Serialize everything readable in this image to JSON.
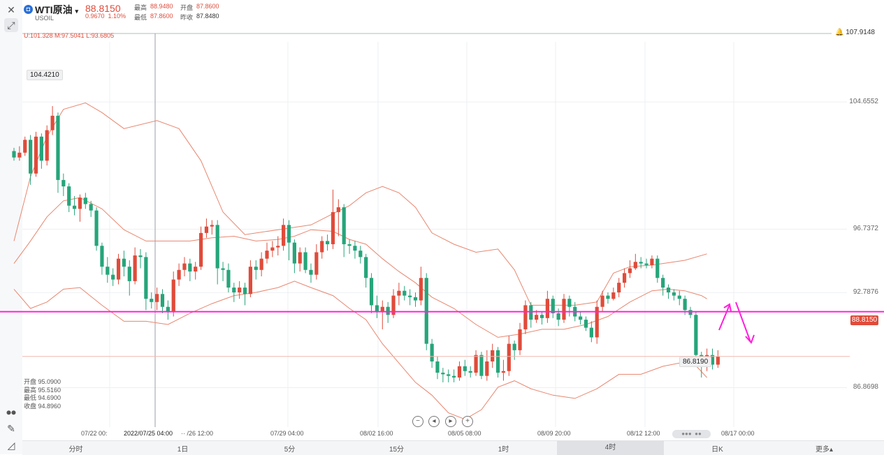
{
  "header": {
    "name": "WTI原油",
    "code": "USOIL",
    "price": "88.8150",
    "change": "0.9670",
    "change_pct": "1.10%",
    "high_label": "最高",
    "high": "88.9480",
    "open_label": "开盘",
    "open": "87.8600",
    "low_label": "最低",
    "low": "87.8600",
    "prev_label": "昨收",
    "prev": "87.8480"
  },
  "boll": "U:101.328   M:97.5041   L:93.6805",
  "alert_price": "107.9148",
  "current_price": "88.8150",
  "ohlc_box": {
    "open": "开盘 95.0900",
    "high": "最高 95.5160",
    "low": "最低 94.6900",
    "close": "收盘 94.8960"
  },
  "nav": {
    "zoom_out": "−",
    "prev": "◂",
    "next": "▸",
    "zoom_in": "+"
  },
  "timeframes": [
    "分时",
    "1日",
    "5分",
    "15分",
    "1时",
    "4时",
    "日K",
    "更多▴"
  ],
  "active_timeframe": "4时",
  "icons": {
    "close": "close-icon",
    "expand": "expand-icon",
    "bell": "bell-icon",
    "draw": "pencil-icon",
    "indicator": "indicator-icon"
  },
  "colors": {
    "up": "#e04b3a",
    "down": "#26a57a",
    "boll": "#e8866f",
    "level_line": "#ff1fdc",
    "arrow": "#ff1fdc"
  },
  "chart_data": {
    "type": "candlestick",
    "y_ticks": [
      104.6552,
      96.7372,
      92.7876,
      86.8698
    ],
    "ylim": [
      84.5,
      108.4
    ],
    "price_labels": {
      "high": "104.4210",
      "low": "86.8190"
    },
    "x_ticks": [
      "07/22 00:",
      "2022/07/25 04:00",
      "·· /26 12:00",
      "07/29 04:00",
      "08/02 16:00",
      "08/05 08:00",
      "08/09 20:00",
      "08/12 12:00",
      "08/17 00:00"
    ],
    "horizontal_level": 91.6,
    "candles": [
      [
        101.6,
        101.2,
        101.8,
        101.0
      ],
      [
        101.2,
        101.5,
        101.9,
        101.0
      ],
      [
        101.5,
        102.3,
        102.5,
        101.3
      ],
      [
        102.3,
        100.2,
        102.6,
        99.5
      ],
      [
        100.2,
        102.5,
        102.8,
        100.0
      ],
      [
        102.5,
        101.0,
        102.7,
        100.5
      ],
      [
        101.0,
        102.9,
        103.2,
        100.7
      ],
      [
        102.9,
        103.8,
        104.4,
        102.6
      ],
      [
        103.8,
        99.8,
        104.0,
        99.0
      ],
      [
        99.8,
        99.4,
        100.2,
        98.8
      ],
      [
        99.4,
        98.2,
        99.6,
        97.8
      ],
      [
        98.2,
        98.0,
        98.8,
        97.6
      ],
      [
        98.0,
        98.7,
        98.9,
        97.2
      ],
      [
        98.7,
        98.3,
        99.0,
        98.0
      ],
      [
        98.3,
        97.9,
        98.5,
        97.5
      ],
      [
        97.9,
        95.7,
        98.1,
        95.4
      ],
      [
        95.7,
        94.4,
        95.9,
        93.9
      ],
      [
        94.4,
        93.9,
        95.0,
        93.4
      ],
      [
        93.9,
        93.6,
        94.3,
        93.2
      ],
      [
        93.6,
        94.9,
        95.2,
        93.3
      ],
      [
        94.9,
        94.4,
        95.4,
        93.8
      ],
      [
        94.4,
        93.5,
        94.8,
        92.6
      ],
      [
        93.5,
        95.1,
        95.6,
        93.3
      ],
      [
        95.1,
        95.0,
        95.5,
        94.3
      ],
      [
        95.0,
        92.4,
        95.3,
        91.7
      ],
      [
        92.4,
        92.2,
        92.8,
        91.8
      ],
      [
        92.2,
        92.7,
        93.1,
        91.7
      ],
      [
        92.7,
        91.9,
        93.0,
        91.5
      ],
      [
        91.9,
        91.6,
        92.3,
        91.1
      ],
      [
        91.6,
        93.6,
        94.1,
        91.3
      ],
      [
        93.6,
        94.2,
        94.6,
        93.2
      ],
      [
        94.2,
        94.6,
        95.0,
        93.8
      ],
      [
        94.6,
        94.1,
        94.9,
        93.5
      ],
      [
        94.1,
        94.4,
        94.7,
        93.6
      ],
      [
        94.4,
        96.5,
        96.9,
        94.2
      ],
      [
        96.5,
        96.9,
        97.4,
        96.2
      ],
      [
        96.9,
        97.0,
        97.3,
        96.4
      ],
      [
        97.0,
        94.3,
        97.3,
        93.3
      ],
      [
        94.3,
        94.2,
        94.7,
        93.5
      ],
      [
        94.2,
        93.1,
        94.6,
        92.8
      ],
      [
        93.1,
        92.8,
        93.4,
        92.2
      ],
      [
        92.8,
        93.1,
        93.5,
        92.4
      ],
      [
        93.1,
        92.7,
        93.4,
        92.0
      ],
      [
        92.7,
        94.4,
        94.8,
        92.5
      ],
      [
        94.4,
        94.2,
        94.8,
        93.6
      ],
      [
        94.2,
        94.9,
        95.3,
        93.8
      ],
      [
        94.9,
        95.4,
        95.9,
        94.6
      ],
      [
        95.4,
        95.6,
        96.0,
        95.0
      ],
      [
        95.6,
        95.7,
        96.3,
        95.1
      ],
      [
        95.7,
        97.0,
        97.4,
        95.4
      ],
      [
        97.0,
        95.9,
        97.3,
        94.8
      ],
      [
        95.9,
        94.6,
        96.1,
        94.0
      ],
      [
        94.6,
        95.3,
        95.6,
        94.1
      ],
      [
        95.3,
        94.2,
        95.6,
        94.0
      ],
      [
        94.2,
        93.9,
        94.6,
        93.4
      ],
      [
        93.9,
        95.3,
        95.8,
        93.6
      ],
      [
        95.3,
        96.0,
        96.3,
        94.9
      ],
      [
        96.0,
        95.8,
        96.4,
        95.4
      ],
      [
        95.8,
        97.8,
        99.2,
        95.5
      ],
      [
        97.8,
        98.1,
        98.6,
        96.3
      ],
      [
        98.1,
        95.8,
        98.3,
        95.0
      ],
      [
        95.8,
        95.7,
        96.1,
        95.2
      ],
      [
        95.7,
        95.4,
        96.0,
        94.9
      ],
      [
        95.4,
        95.0,
        95.7,
        94.6
      ],
      [
        95.0,
        93.7,
        95.2,
        93.1
      ],
      [
        93.7,
        92.0,
        94.0,
        91.5
      ],
      [
        92.0,
        91.6,
        92.6,
        91.2
      ],
      [
        91.6,
        91.9,
        92.3,
        90.5
      ],
      [
        91.9,
        91.4,
        92.2,
        90.9
      ],
      [
        91.4,
        92.6,
        93.0,
        91.2
      ],
      [
        92.6,
        92.9,
        93.4,
        92.0
      ],
      [
        92.9,
        92.6,
        93.2,
        92.3
      ],
      [
        92.6,
        92.5,
        93.0,
        92.0
      ],
      [
        92.5,
        92.3,
        92.8,
        91.9
      ],
      [
        92.3,
        93.7,
        94.4,
        92.0
      ],
      [
        93.7,
        89.6,
        94.0,
        89.2
      ],
      [
        89.6,
        88.5,
        89.9,
        88.1
      ],
      [
        88.5,
        87.8,
        88.8,
        87.4
      ],
      [
        87.8,
        87.7,
        88.1,
        87.2
      ],
      [
        87.7,
        87.6,
        88.0,
        87.2
      ],
      [
        87.6,
        87.5,
        88.0,
        87.2
      ],
      [
        87.5,
        88.2,
        88.5,
        87.3
      ],
      [
        88.2,
        87.9,
        88.6,
        87.6
      ],
      [
        87.9,
        87.8,
        88.2,
        87.5
      ],
      [
        87.8,
        88.9,
        89.2,
        87.6
      ],
      [
        88.9,
        87.6,
        89.1,
        87.4
      ],
      [
        87.6,
        88.5,
        89.2,
        87.3
      ],
      [
        88.5,
        89.2,
        89.6,
        88.1
      ],
      [
        89.2,
        87.8,
        89.4,
        87.5
      ],
      [
        87.8,
        87.9,
        88.6,
        87.3
      ],
      [
        87.9,
        89.6,
        90.1,
        87.6
      ],
      [
        89.6,
        89.2,
        89.8,
        88.6
      ],
      [
        89.2,
        90.5,
        90.9,
        88.9
      ],
      [
        90.5,
        92.0,
        92.3,
        90.2
      ],
      [
        92.0,
        91.1,
        92.2,
        90.6
      ],
      [
        91.1,
        91.4,
        91.7,
        90.9
      ],
      [
        91.4,
        91.2,
        91.6,
        90.8
      ],
      [
        91.2,
        92.4,
        92.9,
        90.9
      ],
      [
        92.4,
        91.5,
        92.6,
        91.2
      ],
      [
        91.5,
        91.1,
        91.8,
        90.7
      ],
      [
        91.1,
        92.4,
        92.7,
        90.9
      ],
      [
        92.4,
        91.9,
        92.6,
        91.3
      ],
      [
        91.9,
        91.3,
        92.2,
        91.0
      ],
      [
        91.3,
        91.1,
        91.6,
        90.8
      ],
      [
        91.1,
        90.6,
        91.3,
        90.4
      ],
      [
        90.6,
        90.0,
        91.0,
        89.7
      ],
      [
        90.0,
        91.9,
        92.3,
        89.6
      ],
      [
        91.9,
        92.6,
        92.9,
        91.6
      ],
      [
        92.6,
        92.4,
        92.8,
        92.1
      ],
      [
        92.4,
        92.8,
        93.1,
        92.3
      ],
      [
        92.8,
        93.4,
        93.7,
        92.5
      ],
      [
        93.4,
        94.0,
        94.3,
        93.1
      ],
      [
        94.0,
        94.3,
        94.8,
        93.7
      ],
      [
        94.3,
        94.7,
        95.2,
        94.2
      ],
      [
        94.7,
        94.6,
        95.0,
        94.3
      ],
      [
        94.6,
        94.5,
        94.9,
        94.3
      ],
      [
        94.5,
        94.9,
        95.1,
        94.3
      ],
      [
        94.9,
        93.7,
        95.1,
        93.4
      ],
      [
        93.7,
        93.1,
        93.9,
        92.6
      ],
      [
        93.1,
        92.8,
        93.3,
        92.4
      ],
      [
        92.8,
        92.6,
        93.0,
        92.3
      ],
      [
        92.6,
        92.4,
        92.9,
        92.0
      ],
      [
        92.4,
        91.7,
        92.6,
        91.4
      ],
      [
        91.7,
        91.4,
        91.9,
        91.2
      ],
      [
        91.4,
        88.9,
        91.6,
        88.5
      ],
      [
        88.9,
        88.4,
        89.1,
        87.5
      ],
      [
        88.4,
        88.9,
        89.3,
        87.9
      ],
      [
        88.9,
        88.3,
        89.3,
        88.0
      ],
      [
        88.3,
        88.8,
        89.2,
        88.1
      ]
    ],
    "boll_upper": [
      [
        0,
        96.0
      ],
      [
        3,
        100.0
      ],
      [
        6,
        102.5
      ],
      [
        9,
        104.2
      ],
      [
        13,
        104.6
      ],
      [
        16,
        104.0
      ],
      [
        20,
        103.0
      ],
      [
        26,
        103.5
      ],
      [
        30,
        103.0
      ],
      [
        34,
        101.0
      ],
      [
        38,
        97.8
      ],
      [
        42,
        96.4
      ],
      [
        48,
        96.7
      ],
      [
        54,
        97.0
      ],
      [
        58,
        97.7
      ],
      [
        61,
        98.2
      ],
      [
        64,
        99.0
      ],
      [
        67,
        99.4
      ],
      [
        70,
        99.0
      ],
      [
        73,
        98.1
      ],
      [
        76,
        96.5
      ],
      [
        80,
        95.8
      ],
      [
        84,
        95.3
      ],
      [
        88,
        95.5
      ],
      [
        91,
        94.2
      ],
      [
        94,
        92.0
      ],
      [
        97,
        92.0
      ],
      [
        102,
        92.0
      ],
      [
        106,
        92.2
      ],
      [
        109,
        94.0
      ],
      [
        112,
        94.4
      ],
      [
        116,
        94.5
      ],
      [
        118,
        94.6
      ],
      [
        122,
        94.8
      ],
      [
        126,
        95.2
      ]
    ],
    "boll_mid": [
      [
        0,
        94.6
      ],
      [
        3,
        96.0
      ],
      [
        6,
        97.5
      ],
      [
        9,
        98.5
      ],
      [
        12,
        98.7
      ],
      [
        16,
        98.0
      ],
      [
        20,
        96.7
      ],
      [
        24,
        96.0
      ],
      [
        28,
        96.0
      ],
      [
        32,
        96.0
      ],
      [
        36,
        96.2
      ],
      [
        40,
        96.3
      ],
      [
        44,
        96.0
      ],
      [
        48,
        96.1
      ],
      [
        51,
        96.3
      ],
      [
        54,
        96.7
      ],
      [
        58,
        96.6
      ],
      [
        61,
        96.1
      ],
      [
        64,
        95.8
      ],
      [
        67,
        94.9
      ],
      [
        70,
        94.1
      ],
      [
        73,
        93.4
      ],
      [
        76,
        92.5
      ],
      [
        80,
        91.8
      ],
      [
        84,
        90.8
      ],
      [
        88,
        90.0
      ],
      [
        92,
        90.2
      ],
      [
        96,
        90.5
      ],
      [
        100,
        90.5
      ],
      [
        104,
        90.8
      ],
      [
        108,
        91.3
      ],
      [
        112,
        92.2
      ],
      [
        116,
        92.9
      ],
      [
        119,
        93.0
      ],
      [
        122,
        92.9
      ],
      [
        125,
        92.6
      ],
      [
        126,
        92.4
      ]
    ],
    "boll_lower": [
      [
        0,
        93.0
      ],
      [
        3,
        91.8
      ],
      [
        6,
        92.2
      ],
      [
        9,
        93.0
      ],
      [
        12,
        93.1
      ],
      [
        16,
        92.0
      ],
      [
        20,
        91.0
      ],
      [
        24,
        91.0
      ],
      [
        28,
        90.8
      ],
      [
        32,
        91.5
      ],
      [
        36,
        92.1
      ],
      [
        40,
        92.6
      ],
      [
        44,
        92.8
      ],
      [
        48,
        93.1
      ],
      [
        51,
        93.5
      ],
      [
        54,
        93.1
      ],
      [
        58,
        92.6
      ],
      [
        61,
        91.8
      ],
      [
        64,
        91.1
      ],
      [
        67,
        89.6
      ],
      [
        70,
        88.4
      ],
      [
        73,
        87.2
      ],
      [
        76,
        86.4
      ],
      [
        79,
        85.3
      ],
      [
        82,
        84.9
      ],
      [
        85,
        85.5
      ],
      [
        88,
        86.9
      ],
      [
        91,
        87.3
      ],
      [
        94,
        86.8
      ],
      [
        98,
        86.4
      ],
      [
        102,
        86.2
      ],
      [
        106,
        86.8
      ],
      [
        110,
        87.7
      ],
      [
        114,
        87.7
      ],
      [
        118,
        88.2
      ],
      [
        121,
        88.4
      ],
      [
        123,
        88.6
      ],
      [
        126,
        87.5
      ]
    ]
  }
}
